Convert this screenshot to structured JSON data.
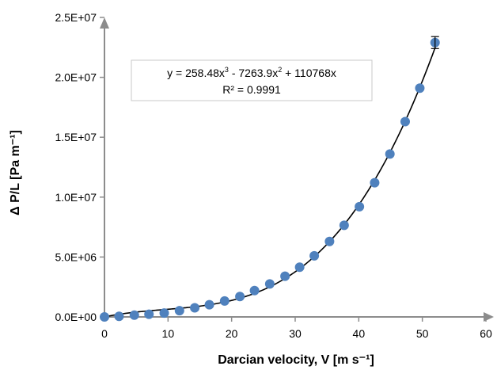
{
  "chart_data": {
    "type": "scatter",
    "xlabel": "Darcian velocity, V [m s⁻¹]",
    "ylabel": "Δ P/L [Pa m⁻¹]",
    "xlim": [
      0,
      60
    ],
    "ylim": [
      0,
      25000000
    ],
    "x_ticks": [
      "0",
      "10",
      "20",
      "30",
      "40",
      "50",
      "60"
    ],
    "y_ticks": [
      "0.0E+00",
      "5.0E+06",
      "1.0E+07",
      "1.5E+07",
      "2.0E+07",
      "2.5E+07"
    ],
    "grid": false,
    "point_color": "#4f81bd",
    "trendline": {
      "type": "polynomial",
      "degree": 3,
      "coefficients": {
        "a3": 258.48,
        "a2": -7263.9,
        "a1": 110768
      },
      "color": "#000000",
      "equation_parts": [
        "y = 258.48x",
        "3",
        " - 7263.9x",
        "2",
        " + 110768x"
      ],
      "r_squared": "R² = 0.9991"
    },
    "points": {
      "x": [
        0,
        2.3,
        4.7,
        7.0,
        9.4,
        11.8,
        14.2,
        16.5,
        18.9,
        21.3,
        23.6,
        26.0,
        28.4,
        30.7,
        33.0,
        35.4,
        37.7,
        40.1,
        42.5,
        44.9,
        47.3,
        49.6,
        52.0
      ],
      "y": [
        0,
        50000,
        150000,
        220000,
        320000,
        520000,
        760000,
        1020000,
        1330000,
        1700000,
        2200000,
        2750000,
        3400000,
        4150000,
        5100000,
        6300000,
        7650000,
        9200000,
        11200000,
        13600000,
        16300000,
        19100000,
        22900000
      ]
    },
    "error_bar": {
      "x": 52.0,
      "y": 22900000,
      "error": 500000
    }
  }
}
